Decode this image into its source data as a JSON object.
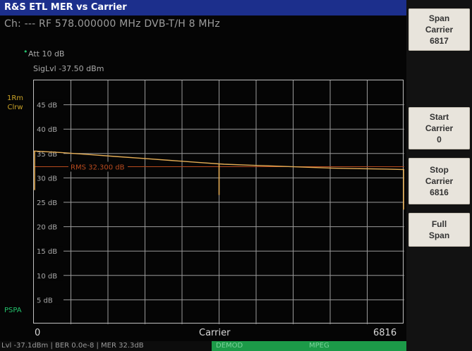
{
  "title": "R&S ETL MER vs Carrier",
  "channel_info": "Ch: --- RF 578.000000 MHz  DVB-T/H  8 MHz",
  "att_label": "Att  10 dB",
  "siglvl_label": "SigLvl -37.50 dBm",
  "trace_label_line1": "1Rm",
  "trace_label_line2": "Clrw",
  "pspa_label": "PSPA",
  "rms_label": "RMS 32.300 dB",
  "x_axis": {
    "start": "0",
    "center": "Carrier",
    "end": "6816"
  },
  "status": {
    "level_ber_mer": "Lvl -37.1dBm | BER 0.0e-8 | MER 32.3dB",
    "demod": "DEMOD",
    "mpeg": "MPEG"
  },
  "softkeys": {
    "span_carrier": {
      "line1": "Span",
      "line2": "Carrier",
      "line3": "6817"
    },
    "start_carrier": {
      "line1": "Start",
      "line2": "Carrier",
      "line3": "0"
    },
    "stop_carrier": {
      "line1": "Stop",
      "line2": "Carrier",
      "line3": "6816"
    },
    "full_span": {
      "line1": "Full",
      "line2": "Span"
    }
  },
  "colors": {
    "titlebar": "#1c2f8c",
    "trace": "#e3ac55",
    "rms_line": "#b84a1e",
    "status_green": "#1c9a48",
    "softkey": "#e8e4dc"
  },
  "chart_data": {
    "type": "line",
    "title": "",
    "xlabel": "Carrier",
    "ylabel": "",
    "xlim": [
      0,
      6816
    ],
    "ylim": [
      0,
      50
    ],
    "y_ticks": [
      "45 dB",
      "40 dB",
      "35 dB",
      "30 dB",
      "25 dB",
      "20 dB",
      "15 dB",
      "10 dB",
      "5 dB"
    ],
    "y_tick_values": [
      45,
      40,
      35,
      30,
      25,
      20,
      15,
      10,
      5
    ],
    "grid": true,
    "rms_value": 32.3,
    "series": [
      {
        "x": [
          0,
          500,
          1000,
          1500,
          2000,
          2500,
          3000,
          3500,
          4000,
          4500,
          5000,
          5500,
          6000,
          6500,
          6816
        ],
        "values": [
          35.5,
          35.2,
          34.8,
          34.4,
          34.0,
          33.6,
          33.2,
          32.8,
          32.6,
          32.4,
          32.2,
          32.0,
          31.9,
          31.8,
          31.7
        ]
      }
    ],
    "spikes": [
      {
        "x": 0,
        "value": 27.5
      },
      {
        "x": 3408,
        "value": 26.5
      },
      {
        "x": 6816,
        "value": 23.5
      }
    ]
  }
}
